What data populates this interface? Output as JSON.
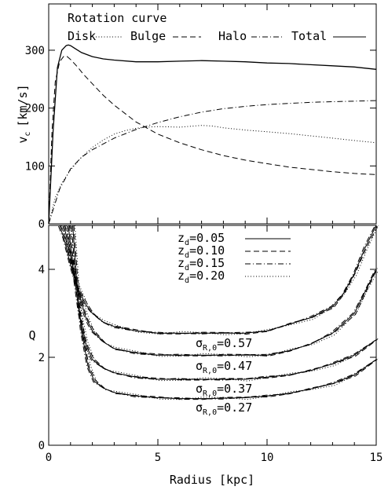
{
  "chart_data": [
    {
      "type": "line",
      "title": "Rotation curve",
      "xlabel": "",
      "ylabel_main": "v",
      "ylabel_sub": "c",
      "ylabel_unit": "[km/s]",
      "xlim": [
        0,
        15
      ],
      "ylim": [
        0,
        380
      ],
      "xticks": [
        "0",
        "5",
        "10",
        "15"
      ],
      "yticks": [
        "0",
        "100",
        "200",
        "300"
      ],
      "xtick_values": [
        0,
        5,
        10,
        15
      ],
      "ytick_values": [
        0,
        100,
        200,
        300
      ],
      "legend_position": "top",
      "series": [
        {
          "name": "Disk",
          "dash": "dotted",
          "x": [
            0,
            0.3,
            0.6,
            1.0,
            1.5,
            2,
            2.5,
            3,
            3.5,
            4,
            4.5,
            5,
            6,
            7,
            7.5,
            8,
            9,
            10,
            11,
            12,
            13,
            14,
            15
          ],
          "y": [
            0,
            45,
            70,
            93,
            115,
            132,
            145,
            155,
            161,
            165,
            167,
            168,
            167,
            170,
            169,
            166,
            162,
            159,
            156,
            152,
            148,
            144,
            140
          ]
        },
        {
          "name": "Bulge",
          "dash": "dashed",
          "x": [
            0,
            0.15,
            0.3,
            0.5,
            0.7,
            0.85,
            1.0,
            1.3,
            1.6,
            2,
            2.5,
            3,
            4,
            5,
            6,
            7,
            8,
            9,
            10,
            11,
            12,
            13,
            14,
            15
          ],
          "y": [
            0,
            160,
            245,
            280,
            290,
            289,
            284,
            272,
            258,
            242,
            222,
            205,
            176,
            155,
            140,
            128,
            118,
            110,
            104,
            98,
            94,
            90,
            87,
            85
          ]
        },
        {
          "name": "Halo",
          "dash": "dashdot",
          "x": [
            0,
            0.5,
            1,
            1.5,
            2,
            3,
            4,
            5,
            6,
            7,
            8,
            9,
            10,
            11,
            12,
            13,
            14,
            15
          ],
          "y": [
            0,
            60,
            95,
            115,
            128,
            148,
            163,
            175,
            185,
            193,
            199,
            203,
            206,
            208,
            210,
            211,
            212,
            213
          ]
        },
        {
          "name": "Total",
          "dash": "solid",
          "x": [
            0,
            0.2,
            0.4,
            0.6,
            0.8,
            0.9,
            1.0,
            1.2,
            1.5,
            2,
            2.5,
            3,
            4,
            5,
            6,
            7,
            8,
            9,
            10,
            11,
            12,
            13,
            14,
            15
          ],
          "y": [
            0,
            160,
            270,
            300,
            308,
            309,
            308,
            303,
            296,
            289,
            285,
            283,
            280,
            280,
            281,
            282,
            281,
            280,
            278,
            277,
            275,
            273,
            271,
            267
          ]
        }
      ]
    },
    {
      "type": "line",
      "title": "",
      "xlabel": "Radius [kpc]",
      "ylabel": "Q",
      "xlim": [
        0,
        15
      ],
      "ylim": [
        0,
        5
      ],
      "xticks": [
        "0",
        "5",
        "10",
        "15"
      ],
      "yticks": [
        "0",
        "2",
        "4"
      ],
      "xtick_values": [
        0,
        5,
        10,
        15
      ],
      "ytick_values": [
        0,
        2,
        4
      ],
      "legend_position": "top-right",
      "series": [
        {
          "name_main": "z",
          "name_sub": "d",
          "name_value": "=0.05",
          "dash": "solid"
        },
        {
          "name_main": "z",
          "name_sub": "d",
          "name_value": "=0.10",
          "dash": "dashed"
        },
        {
          "name_main": "z",
          "name_sub": "d",
          "name_value": "=0.15",
          "dash": "dashdot"
        },
        {
          "name_main": "z",
          "name_sub": "d",
          "name_value": "=0.20",
          "dash": "dotted"
        }
      ],
      "groups": [
        {
          "label_main": "σ",
          "label_sub": "R,0",
          "label_value": "=0.57",
          "x": [
            0.5,
            0.7,
            1.0,
            1.3,
            1.7,
            2,
            2.5,
            3,
            4,
            5,
            6,
            7,
            8,
            9,
            10,
            11,
            12,
            13,
            13.5,
            14,
            14.5,
            15
          ],
          "y": [
            5.0,
            4.7,
            4.1,
            3.6,
            3.2,
            3.0,
            2.8,
            2.7,
            2.6,
            2.55,
            2.55,
            2.55,
            2.55,
            2.55,
            2.6,
            2.75,
            2.9,
            3.15,
            3.45,
            3.9,
            4.5,
            5.0
          ]
        },
        {
          "label_main": "σ",
          "label_sub": "R,0",
          "label_value": "=0.47",
          "x": [
            0.7,
            1.0,
            1.3,
            1.7,
            2,
            2.5,
            3,
            4,
            5,
            6,
            7,
            8,
            9,
            10,
            11,
            12,
            13,
            14,
            14.5,
            15
          ],
          "y": [
            5.0,
            4.3,
            3.6,
            2.9,
            2.6,
            2.35,
            2.2,
            2.1,
            2.05,
            2.05,
            2.05,
            2.05,
            2.05,
            2.05,
            2.15,
            2.3,
            2.55,
            3.0,
            3.5,
            4.0
          ]
        },
        {
          "label_main": "σ",
          "label_sub": "R,0",
          "label_value": "=0.37",
          "x": [
            0.9,
            1.1,
            1.4,
            1.7,
            2,
            2.5,
            3,
            4,
            5,
            6,
            7,
            8,
            9,
            10,
            11,
            12,
            13,
            14,
            15
          ],
          "y": [
            5.0,
            4.1,
            3.0,
            2.3,
            1.95,
            1.75,
            1.65,
            1.55,
            1.5,
            1.5,
            1.5,
            1.5,
            1.5,
            1.55,
            1.6,
            1.7,
            1.85,
            2.05,
            2.4
          ]
        },
        {
          "label_main": "σ",
          "label_sub": "R,0",
          "label_value": "=0.27",
          "x": [
            1.1,
            1.3,
            1.5,
            1.8,
            2.1,
            2.5,
            3,
            4,
            5,
            6,
            7,
            8,
            9,
            10,
            11,
            12,
            13,
            14,
            15
          ],
          "y": [
            5.0,
            3.6,
            2.6,
            1.8,
            1.45,
            1.3,
            1.2,
            1.12,
            1.08,
            1.06,
            1.06,
            1.07,
            1.08,
            1.12,
            1.18,
            1.28,
            1.4,
            1.6,
            1.95
          ]
        }
      ]
    }
  ]
}
